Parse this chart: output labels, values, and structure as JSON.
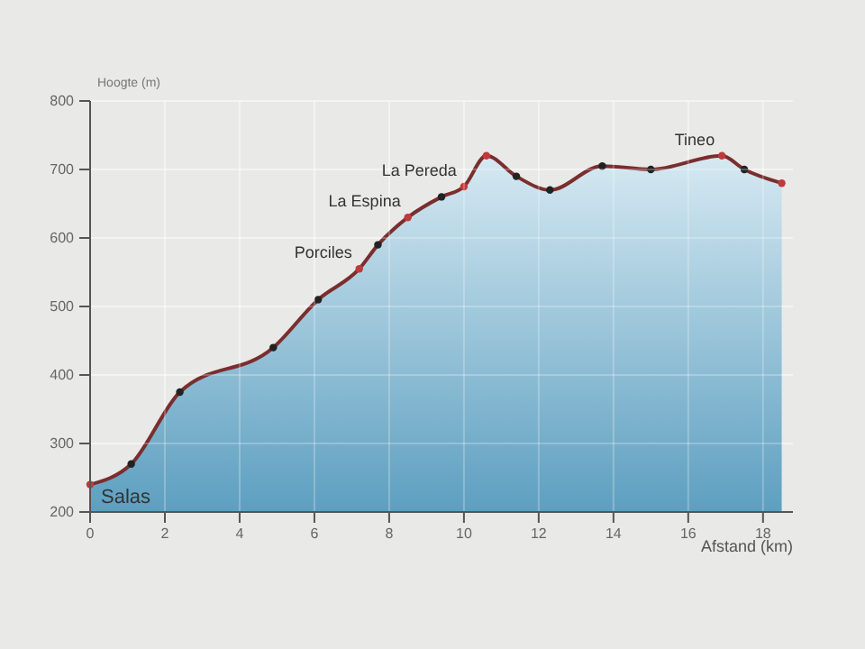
{
  "chart_data": {
    "type": "area",
    "xlabel": "Afstand (km)",
    "ylabel": "Hoogte (m)",
    "x": [
      0,
      1.1,
      2.4,
      4.9,
      6.1,
      7.2,
      7.7,
      8.5,
      9.4,
      10,
      10.6,
      11.4,
      12.3,
      13.7,
      15,
      16.9,
      17.5,
      18.5
    ],
    "series": [
      {
        "color": "#7a2e2e",
        "values": [
          240,
          270,
          375,
          440,
          510,
          555,
          590,
          630,
          660,
          675,
          720,
          690,
          670,
          705,
          700,
          720,
          700,
          680
        ],
        "colors": [
          "#c0393b",
          "#222222",
          "#222222",
          "#222222",
          "#222222",
          "#c0393b",
          "#222222",
          "#c0393b",
          "#222222",
          "#c0393b",
          "#c0393b",
          "#222222",
          "#222222",
          "#222222",
          "#222222",
          "#c0393b",
          "#222222",
          "#c0393b"
        ]
      }
    ],
    "xlim": [
      0,
      18.8
    ],
    "ylim": [
      200,
      800
    ],
    "xticks": [
      0,
      2,
      4,
      6,
      8,
      10,
      12,
      14,
      16,
      18
    ],
    "yticks": [
      200,
      300,
      400,
      500,
      600,
      700,
      800
    ],
    "grid": true,
    "marker": "circle",
    "annotations": [
      {
        "text": "Salas",
        "x": 0,
        "y": 240
      },
      {
        "text": "Porciles",
        "x": 7.2,
        "y": 555
      },
      {
        "text": "La Espina",
        "x": 8.5,
        "y": 630
      },
      {
        "text": "La Pereda",
        "x": 10,
        "y": 675
      },
      {
        "text": "Tineo",
        "x": 16.9,
        "y": 720
      }
    ]
  }
}
